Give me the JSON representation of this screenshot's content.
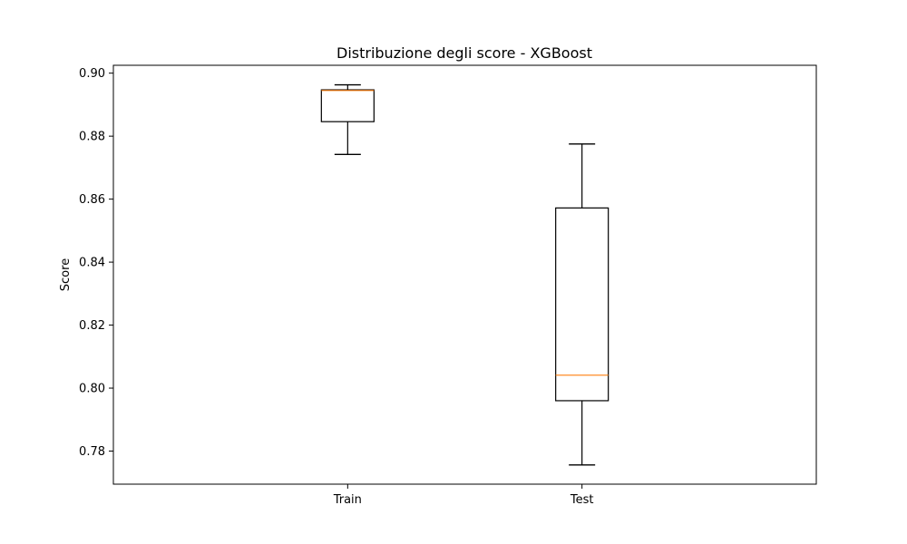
{
  "colors": {
    "background": "#ffffff",
    "axis": "#000000",
    "box": "#000000",
    "median": "#ff7f0e"
  },
  "chart_data": {
    "type": "box",
    "title": "Distribuzione degli score - XGBoost",
    "xlabel": "",
    "ylabel": "Score",
    "ylim": [
      0.7695,
      0.9025
    ],
    "yticks": [
      0.78,
      0.8,
      0.82,
      0.84,
      0.86,
      0.88,
      0.9
    ],
    "ytick_labels": [
      "0.78",
      "0.80",
      "0.82",
      "0.84",
      "0.86",
      "0.88",
      "0.90"
    ],
    "categories": [
      "Train",
      "Test"
    ],
    "boxes": [
      {
        "category": "Train",
        "whisker_low": 0.8742,
        "q1": 0.8846,
        "median": 0.8945,
        "q3": 0.8947,
        "whisker_high": 0.8963
      },
      {
        "category": "Test",
        "whisker_low": 0.7756,
        "q1": 0.796,
        "median": 0.8041,
        "q3": 0.8572,
        "whisker_high": 0.8775
      }
    ],
    "grid": false,
    "legend": "none"
  }
}
